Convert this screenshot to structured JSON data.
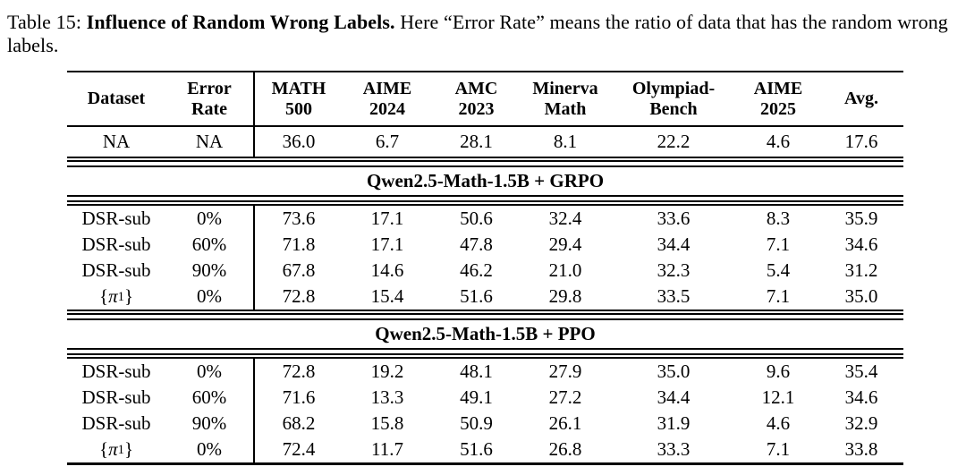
{
  "caption": {
    "prefix": "Table 15: ",
    "bold": "Influence of Random Wrong Labels.",
    "rest": " Here “Error Rate” means the ratio of data that has the random wrong labels."
  },
  "table": {
    "columns": [
      "Dataset",
      "Error\nRate",
      "MATH\n500",
      "AIME\n2024",
      "AMC\n2023",
      "Minerva\nMath",
      "Olympiad-\nBench",
      "AIME\n2025",
      "Avg."
    ],
    "baseline_row": [
      "NA",
      "NA",
      "36.0",
      "6.7",
      "28.1",
      "8.1",
      "22.2",
      "4.6",
      "17.6"
    ],
    "sections": [
      {
        "title": "Qwen2.5-Math-1.5B + GRPO",
        "rows": [
          [
            "DSR-sub",
            "0%",
            "73.6",
            "17.1",
            "50.6",
            "32.4",
            "33.6",
            "8.3",
            "35.9"
          ],
          [
            "DSR-sub",
            "60%",
            "71.8",
            "17.1",
            "47.8",
            "29.4",
            "34.4",
            "7.1",
            "34.6"
          ],
          [
            "DSR-sub",
            "90%",
            "67.8",
            "14.6",
            "46.2",
            "21.0",
            "32.3",
            "5.4",
            "31.2"
          ],
          [
            "{π₁}",
            "0%",
            "72.8",
            "15.4",
            "51.6",
            "29.8",
            "33.5",
            "7.1",
            "35.0"
          ]
        ]
      },
      {
        "title": "Qwen2.5-Math-1.5B + PPO",
        "rows": [
          [
            "DSR-sub",
            "0%",
            "72.8",
            "19.2",
            "48.1",
            "27.9",
            "35.0",
            "9.6",
            "35.4"
          ],
          [
            "DSR-sub",
            "60%",
            "71.6",
            "13.3",
            "49.1",
            "27.2",
            "34.4",
            "12.1",
            "34.6"
          ],
          [
            "DSR-sub",
            "90%",
            "68.2",
            "15.8",
            "50.9",
            "26.1",
            "31.9",
            "4.6",
            "32.9"
          ],
          [
            "{π₁}",
            "0%",
            "72.4",
            "11.7",
            "51.6",
            "26.8",
            "33.3",
            "7.1",
            "33.8"
          ]
        ]
      }
    ]
  },
  "colors": {
    "text": "#000000",
    "background": "#ffffff",
    "rule": "#000000"
  }
}
